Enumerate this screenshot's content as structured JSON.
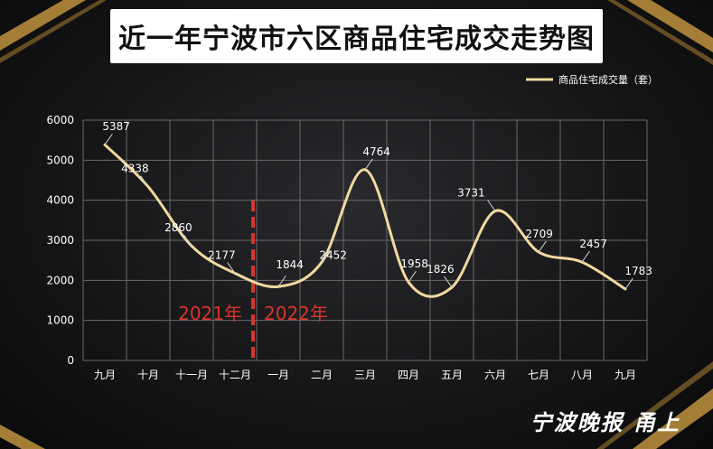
{
  "chart_data": {
    "type": "line",
    "title": "近一年宁波市六区商品住宅成交走势图",
    "categories": [
      "九月",
      "十月",
      "十一月",
      "十二月",
      "一月",
      "二月",
      "三月",
      "四月",
      "五月",
      "六月",
      "七月",
      "八月",
      "九月"
    ],
    "series": [
      {
        "name": "商品住宅成交量（套）",
        "values": [
          5387,
          4338,
          2860,
          2177,
          1844,
          2452,
          4764,
          1958,
          1826,
          3731,
          2709,
          2457,
          1783
        ]
      }
    ],
    "yticks": [
      0,
      1000,
      2000,
      3000,
      4000,
      5000,
      6000
    ],
    "ylim": [
      0,
      6000
    ],
    "legend_position": "top-right",
    "grid": true,
    "year_divider": {
      "left_label": "2021年",
      "right_label": "2022年"
    },
    "colors": {
      "line": "#f3d9a0",
      "divider": "#d8352b",
      "grid": "#6a6a6a",
      "text": "#ffffff"
    }
  },
  "watermark": "宁波晚报 甬上"
}
